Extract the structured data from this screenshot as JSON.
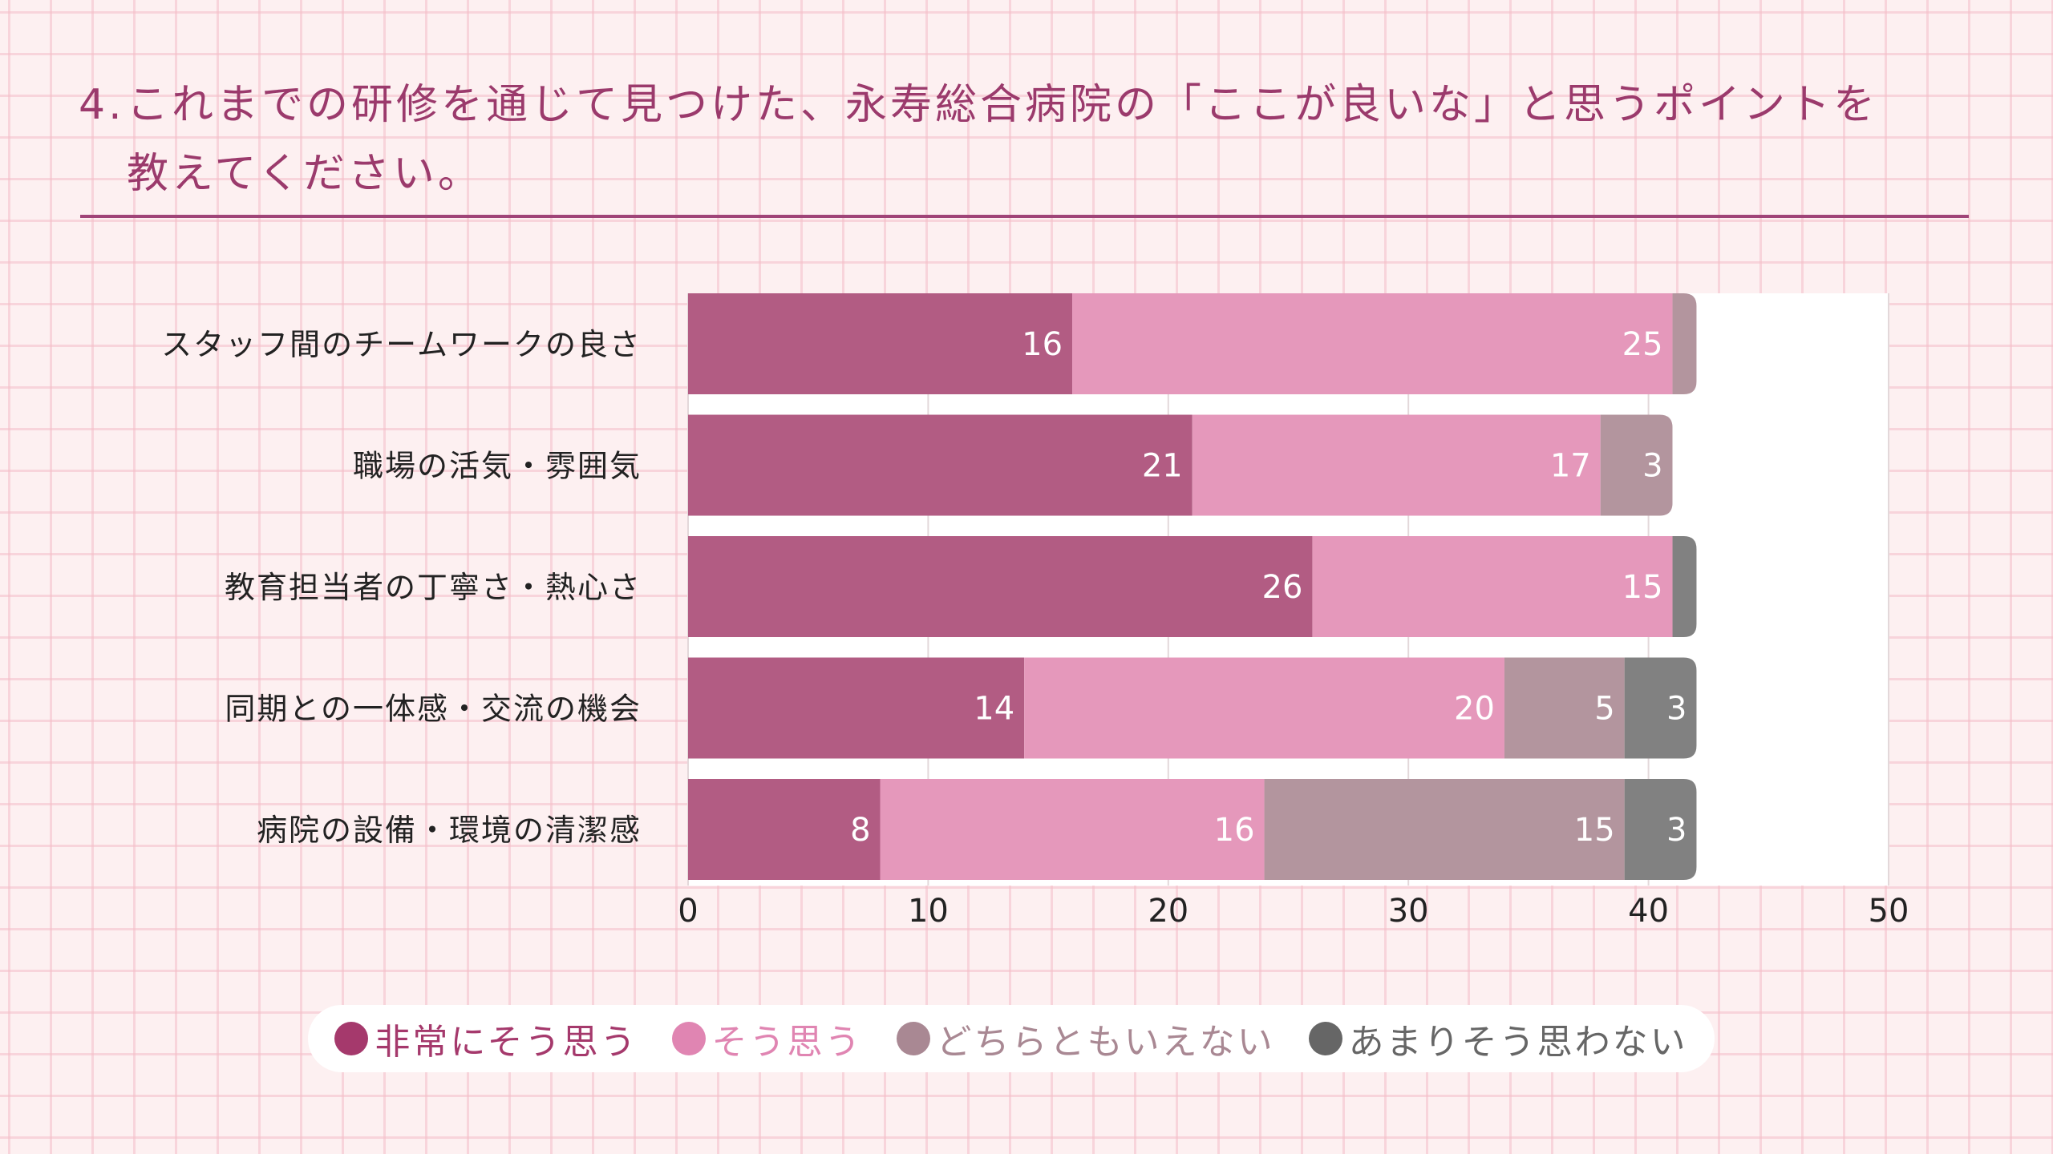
{
  "header": {
    "number": "4.",
    "title_line1": "これまでの研修を通じて見つけた、永寿総合病院の「ここが良いな」と思うポイントを",
    "title_line2": "教えてください。"
  },
  "colors": {
    "strongly_agree": "#b25c83",
    "agree": "#e598bb",
    "neutral": "#b3959e",
    "disagree": "#818181",
    "title": "#9b3a6c",
    "grid": "#e3d8da"
  },
  "chart_data": {
    "type": "bar",
    "orientation": "horizontal",
    "stacked": true,
    "categories": [
      "スタッフ間のチームワークの良さ",
      "職場の活気・雰囲気",
      "教育担当者の丁寧さ・熱心さ",
      "同期との一体感・交流の機会",
      "病院の設備・環境の清潔感"
    ],
    "series": [
      {
        "name": "非常にそう思う",
        "color": "#b25c83",
        "legend_color": "#a5396c",
        "values": [
          16,
          21,
          26,
          14,
          8
        ]
      },
      {
        "name": "そう思う",
        "color": "#e598bb",
        "legend_color": "#e085b2",
        "values": [
          25,
          17,
          15,
          20,
          16
        ]
      },
      {
        "name": "どちらともいえない",
        "color": "#b3959e",
        "legend_color": "#a98893",
        "values": [
          1,
          3,
          0,
          5,
          15
        ]
      },
      {
        "name": "あまりそう思わない",
        "color": "#818181",
        "legend_color": "#666666",
        "values": [
          0,
          0,
          1,
          3,
          3
        ]
      }
    ],
    "xlim": [
      0,
      50
    ],
    "xticks": [
      0,
      10,
      20,
      30,
      40,
      50
    ],
    "xlabel": "",
    "ylabel": "",
    "grid": true,
    "legend_position": "bottom",
    "data_labels_min_value": 2
  }
}
